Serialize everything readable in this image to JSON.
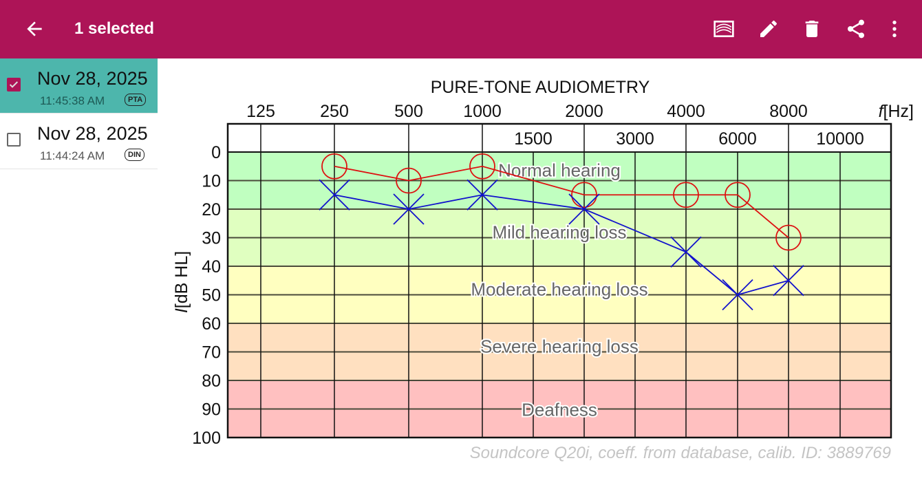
{
  "appbar": {
    "title": "1 selected",
    "color": "#ad1457",
    "actions": [
      "audiogram-view-icon",
      "edit-icon",
      "delete-icon",
      "share-icon",
      "more-options-icon"
    ]
  },
  "sidebar": {
    "items": [
      {
        "date": "Nov 28, 2025",
        "time": "11:45:38 AM",
        "badge": "PTA",
        "selected": true
      },
      {
        "date": "Nov 28, 2025",
        "time": "11:44:24 AM",
        "badge": "DIN",
        "selected": false
      }
    ]
  },
  "chart_data": {
    "type": "line",
    "title": "PURE-TONE AUDIOMETRY",
    "xlabel_italic": "f",
    "xlabel_unit": "[Hz]",
    "ylabel_italic": "I",
    "ylabel_unit": "[dB HL]",
    "x_ticks_top": [
      "125",
      "250",
      "500",
      "1000",
      "2000",
      "4000",
      "8000"
    ],
    "x_ticks_inner": [
      "1500",
      "3000",
      "6000",
      "10000"
    ],
    "y_ticks": [
      "0",
      "10",
      "20",
      "30",
      "40",
      "50",
      "60",
      "70",
      "80",
      "90",
      "100"
    ],
    "ylim": [
      0,
      100
    ],
    "y_inverted": true,
    "grid": true,
    "bands": [
      {
        "label": "Normal hearing",
        "from": 0,
        "to": 20,
        "color": "#c0ffc0"
      },
      {
        "label": "Mild hearing loss",
        "from": 20,
        "to": 40,
        "color": "#e0ffc0"
      },
      {
        "label": "Moderate hearing loss",
        "from": 40,
        "to": 60,
        "color": "#ffffc0"
      },
      {
        "label": "Severe hearing loss",
        "from": 60,
        "to": 80,
        "color": "#ffe0c0"
      },
      {
        "label": "Deafness",
        "from": 80,
        "to": 100,
        "color": "#ffc0c0"
      }
    ],
    "series": [
      {
        "marker": "circle",
        "color": "#dd1111",
        "x": [
          250,
          500,
          1000,
          2000,
          4000,
          6000,
          8000
        ],
        "y": [
          5,
          10,
          5,
          15,
          15,
          15,
          30
        ]
      },
      {
        "marker": "cross",
        "color": "#1111cc",
        "x": [
          250,
          500,
          1000,
          2000,
          4000,
          6000,
          8000
        ],
        "y": [
          15,
          20,
          15,
          20,
          35,
          50,
          45
        ]
      }
    ],
    "footnote": "Soundcore Q20i, coeff. from database, calib. ID: 3889769"
  }
}
